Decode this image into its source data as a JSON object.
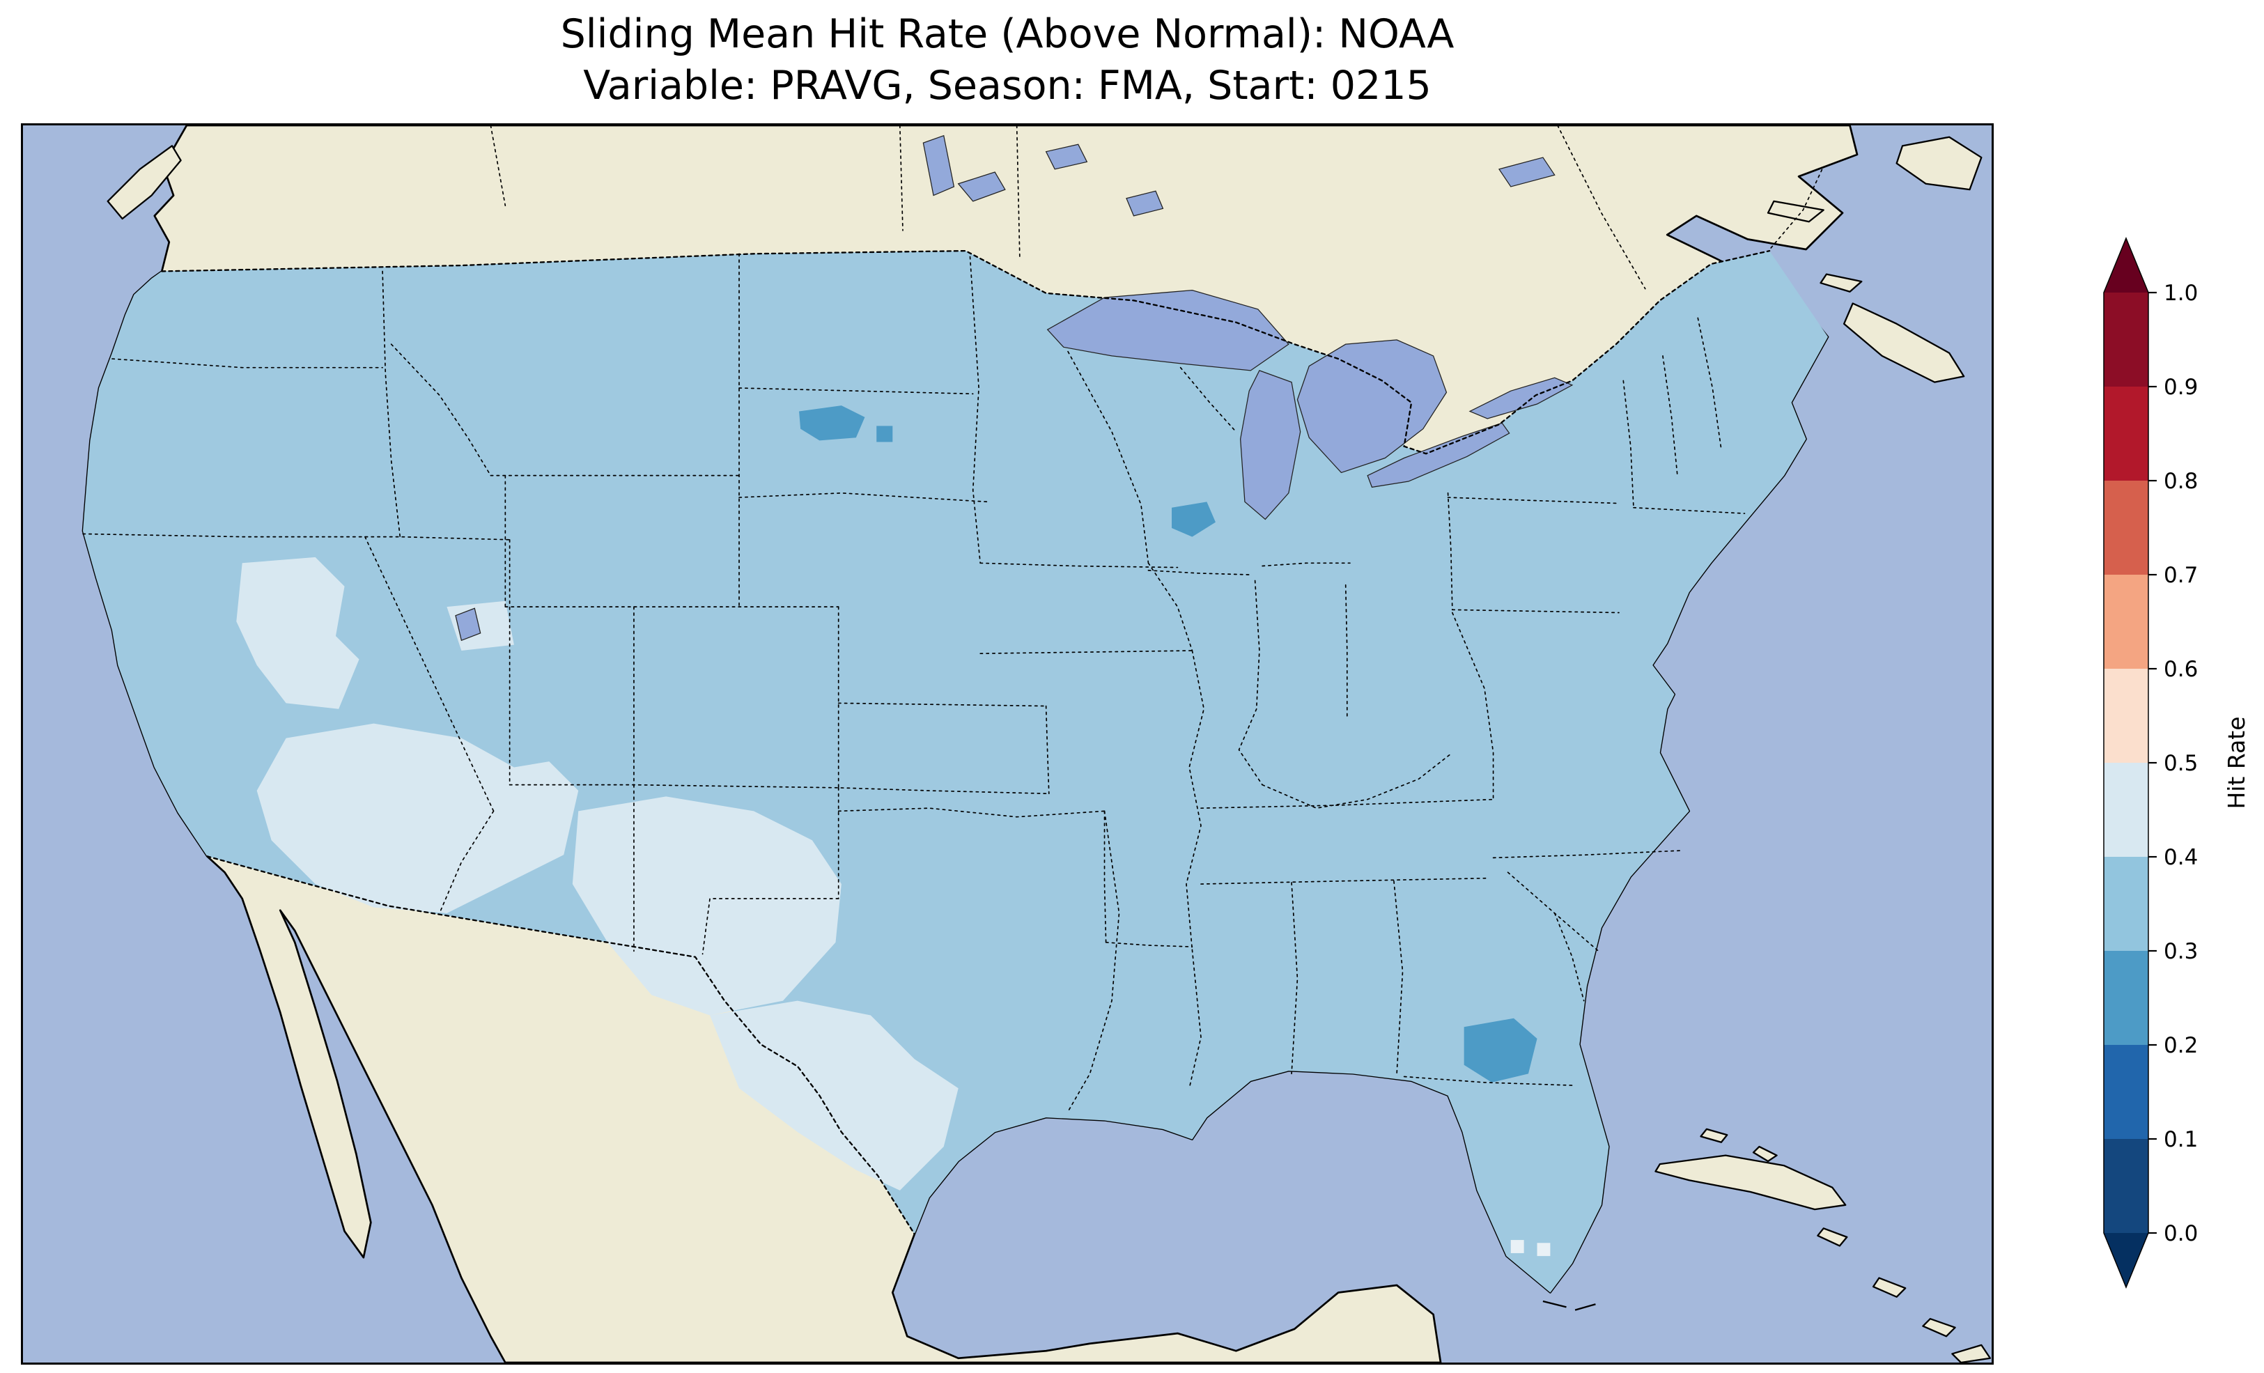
{
  "title": {
    "line1": "Sliding Mean Hit Rate (Above Normal): NOAA",
    "line2": "Variable: PRAVG, Season: FMA, Start: 0215"
  },
  "colorbar": {
    "label": "Hit Rate",
    "ticks": [
      "1.0",
      "0.9",
      "0.8",
      "0.7",
      "0.6",
      "0.5",
      "0.4",
      "0.3",
      "0.2",
      "0.1",
      "0.0"
    ],
    "over_color": "#67001f",
    "under_color": "#053061",
    "segment_colors_top_to_bottom": [
      "#8c0d26",
      "#b2182b",
      "#d6604d",
      "#f4a582",
      "#fbdfcd",
      "#d8e8f1",
      "#92c5de",
      "#4d9bc6",
      "#2166ac",
      "#14477e"
    ]
  },
  "map": {
    "colors": {
      "ocean": "#a5b9dc",
      "land": "#eeebd6",
      "lake": "#93a9da",
      "hit_mid": "#9fc9e0",
      "hit_light": "#d8e8f1",
      "hit_lighter": "#e9f1f6",
      "hit_low": "#4d9bc6"
    }
  },
  "chart_data": {
    "type": "heatmap",
    "title": "Sliding Mean Hit Rate (Above Normal): NOAA",
    "subtitle": "Variable: PRAVG, Season: FMA, Start: 0215",
    "source_label": "NOAA",
    "variable": "PRAVG",
    "season": "FMA",
    "start": "0215",
    "region": "Contiguous United States (with surrounding Canada, Mexico, Caribbean)",
    "colormap": "RdBu_r",
    "colorbar_label": "Hit Rate",
    "levels": [
      0.0,
      0.1,
      0.2,
      0.3,
      0.4,
      0.5,
      0.6,
      0.7,
      0.8,
      0.9,
      1.0
    ],
    "extend": "both",
    "legend_position": "right",
    "values_summary": {
      "dominant_hit_rate_bin": "0.3-0.4 (light blue over most of CONUS)",
      "higher_bins_0.4-0.5": "patches over Nevada, Arizona, New Mexico, western and southern Texas, small spots in southern Florida",
      "lower_bins_0.2-0.3": [
        {
          "location": "central South Dakota",
          "value": "0.2-0.3"
        },
        {
          "location": "eastern Wisconsin near Lake Michigan",
          "value": "0.2-0.3"
        },
        {
          "location": "northeastern Florida",
          "value": "0.2-0.3"
        }
      ],
      "no_values_above": 0.5,
      "no_red_bins_present_on_map": true
    }
  }
}
